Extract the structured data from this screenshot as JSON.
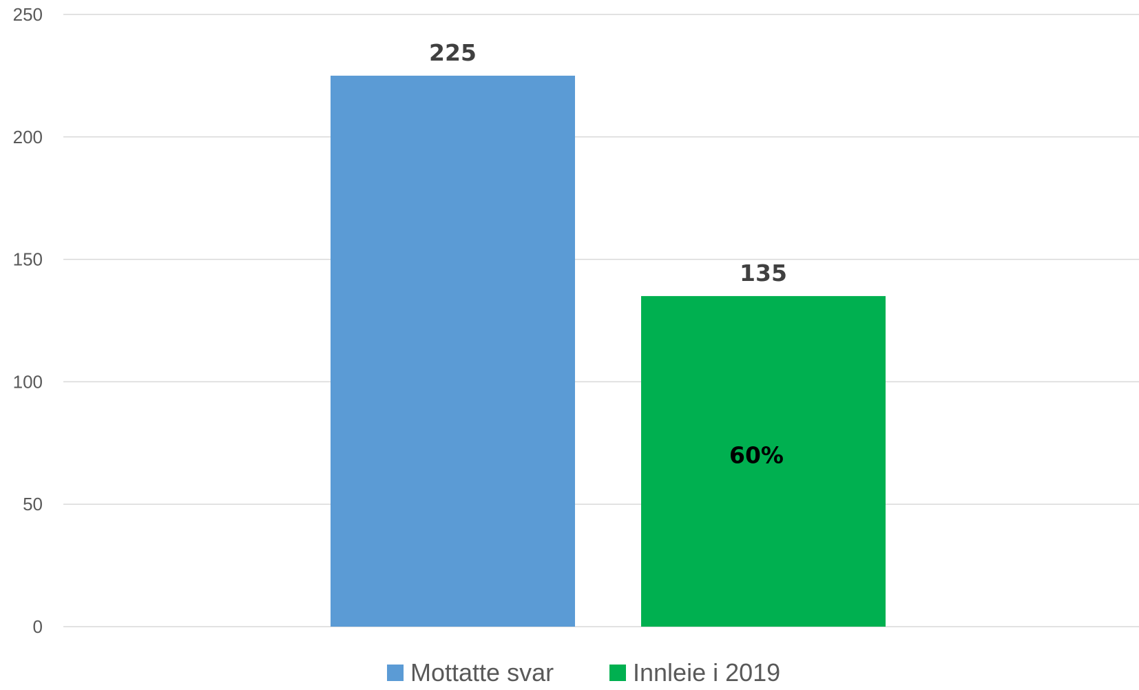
{
  "chart_data": {
    "type": "bar",
    "title": "",
    "xlabel": "",
    "ylabel": "",
    "ylim": [
      0,
      250
    ],
    "yticks": [
      0,
      50,
      100,
      150,
      200,
      250
    ],
    "grid": true,
    "legend_position": "bottom",
    "series": [
      {
        "name": "Mottatte svar",
        "values": [
          225
        ],
        "color": "#5b9bd5",
        "value_label": "225"
      },
      {
        "name": "Innleie i 2019",
        "values": [
          135
        ],
        "color": "#00b050",
        "value_label": "135",
        "inner_label": "60%"
      }
    ]
  }
}
